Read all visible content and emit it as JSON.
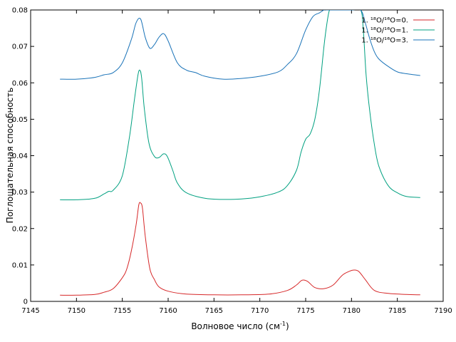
{
  "chart_data": {
    "type": "line",
    "xlabel": "Волновое число (см",
    "xlabel_sup": "-1",
    "xlabel_tail": ")",
    "ylabel": "Поглощательная способность",
    "xlim": [
      7145,
      7190
    ],
    "ylim": [
      0,
      0.08
    ],
    "xticks": [
      7145,
      7150,
      7155,
      7160,
      7165,
      7170,
      7175,
      7180,
      7185,
      7190
    ],
    "yticks": [
      0,
      0.01,
      0.02,
      0.03,
      0.04,
      0.05,
      0.06,
      0.07,
      0.08
    ],
    "grid": false,
    "legend_position": "top-right",
    "series": [
      {
        "name": "1. ¹⁸O/¹⁶O=0.",
        "color": "#d62728",
        "x": [
          7148.2,
          7150,
          7152,
          7153,
          7154,
          7155,
          7155.5,
          7156,
          7156.5,
          7156.8,
          7157,
          7157.2,
          7157.5,
          7158,
          7158.5,
          7159,
          7160,
          7162,
          7165,
          7168,
          7171,
          7173,
          7174,
          7174.6,
          7175.2,
          7176,
          7177,
          7178,
          7179,
          7179.8,
          7180.3,
          7180.8,
          7181.5,
          7182.5,
          7184,
          7186,
          7187.5
        ],
        "y": [
          0.0017,
          0.0017,
          0.0019,
          0.0025,
          0.0035,
          0.0065,
          0.009,
          0.014,
          0.021,
          0.0265,
          0.027,
          0.0255,
          0.018,
          0.009,
          0.006,
          0.004,
          0.0028,
          0.002,
          0.0018,
          0.0018,
          0.002,
          0.003,
          0.0045,
          0.0058,
          0.0055,
          0.0038,
          0.0035,
          0.0045,
          0.0072,
          0.0083,
          0.0086,
          0.0082,
          0.006,
          0.003,
          0.0022,
          0.0019,
          0.0018
        ]
      },
      {
        "name": "1. ¹⁸O/¹⁶O=1.",
        "color": "#00a080",
        "x": [
          7148.2,
          7150,
          7152,
          7153,
          7153.5,
          7154,
          7155,
          7155.8,
          7156.3,
          7156.7,
          7156.9,
          7157.1,
          7157.4,
          7157.9,
          7158.5,
          7159,
          7159.5,
          7159.9,
          7160.5,
          7161,
          7162,
          7164,
          7166,
          7168,
          7170,
          7172,
          7173,
          7174,
          7174.5,
          7175,
          7175.5,
          7176,
          7176.5,
          7177,
          7177.3,
          7177.6,
          7178,
          7180,
          7181,
          7181.3,
          7181.6,
          7182,
          7182.5,
          7183,
          7184,
          7185,
          7186,
          7187.5
        ],
        "y": [
          0.0279,
          0.0279,
          0.0283,
          0.0295,
          0.0302,
          0.0305,
          0.0345,
          0.0455,
          0.055,
          0.062,
          0.0635,
          0.0615,
          0.053,
          0.0435,
          0.0398,
          0.0395,
          0.0405,
          0.0398,
          0.036,
          0.0325,
          0.0298,
          0.0283,
          0.028,
          0.0281,
          0.0287,
          0.03,
          0.0318,
          0.036,
          0.041,
          0.0445,
          0.046,
          0.05,
          0.058,
          0.07,
          0.076,
          0.08,
          0.08,
          0.08,
          0.08,
          0.074,
          0.062,
          0.052,
          0.043,
          0.037,
          0.0318,
          0.0298,
          0.0288,
          0.0285
        ]
      },
      {
        "name": "1. ¹⁸O/¹⁶O=3.",
        "color": "#1a73b8",
        "x": [
          7148.2,
          7150,
          7152,
          7153,
          7154,
          7155,
          7156,
          7156.5,
          7157,
          7157.5,
          7158,
          7158.5,
          7159,
          7159.5,
          7160,
          7161,
          7162,
          7163,
          7164,
          7166,
          7168,
          7170,
          7172,
          7173,
          7174,
          7175,
          7175.8,
          7176.5,
          7177,
          7177.5,
          7180,
          7181,
          7181.5,
          7182,
          7182.5,
          7183,
          7184,
          7185,
          7186,
          7187.5
        ],
        "y": [
          0.061,
          0.061,
          0.0615,
          0.0622,
          0.0628,
          0.0655,
          0.072,
          0.0765,
          0.0775,
          0.0725,
          0.0695,
          0.0705,
          0.0725,
          0.0735,
          0.0715,
          0.0655,
          0.0635,
          0.0628,
          0.0618,
          0.061,
          0.0612,
          0.0618,
          0.063,
          0.065,
          0.068,
          0.0745,
          0.0782,
          0.0792,
          0.08,
          0.08,
          0.08,
          0.08,
          0.0765,
          0.072,
          0.0685,
          0.0665,
          0.0645,
          0.063,
          0.0625,
          0.062
        ]
      }
    ]
  }
}
